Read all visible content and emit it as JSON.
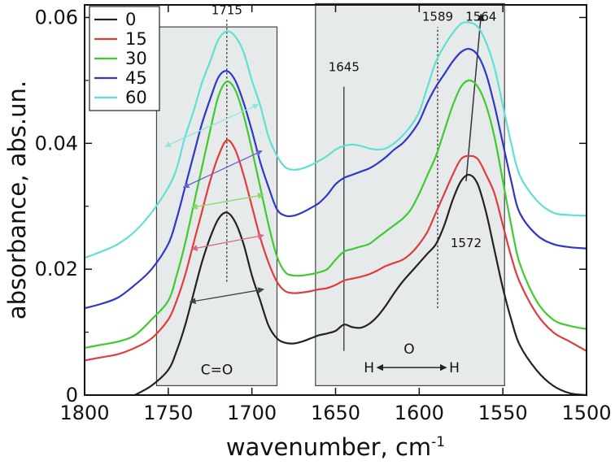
{
  "chart_data": {
    "type": "line",
    "xlabel": "wavenumber, cm",
    "xlabel_sup": "-1",
    "ylabel": "absorbance, abs.un.",
    "xlim": [
      1800,
      1500
    ],
    "ylim": [
      0,
      0.062
    ],
    "x_ticks": [
      1800,
      1750,
      1700,
      1650,
      1600,
      1550,
      1500
    ],
    "y_ticks": [
      0,
      0.02,
      0.04,
      0.06
    ],
    "y_tick_labels": [
      "0",
      "0.02",
      "0.04",
      "0.06"
    ],
    "legend_position": "top-left",
    "series": [
      {
        "name": "0",
        "color": "#222222",
        "x": [
          1770,
          1760,
          1750,
          1745,
          1740,
          1735,
          1730,
          1725,
          1720,
          1715,
          1710,
          1705,
          1700,
          1695,
          1690,
          1685,
          1680,
          1675,
          1670,
          1665,
          1660,
          1655,
          1650,
          1645,
          1640,
          1635,
          1630,
          1625,
          1620,
          1615,
          1610,
          1605,
          1600,
          1595,
          1590,
          1585,
          1580,
          1575,
          1570,
          1565,
          1560,
          1555,
          1550,
          1545,
          1540,
          1530,
          1520,
          1510,
          1500
        ],
        "y": [
          0,
          0.0015,
          0.004,
          0.007,
          0.011,
          0.016,
          0.021,
          0.025,
          0.028,
          0.029,
          0.0275,
          0.024,
          0.019,
          0.015,
          0.011,
          0.009,
          0.0083,
          0.0082,
          0.0085,
          0.009,
          0.0095,
          0.0098,
          0.0102,
          0.0112,
          0.0108,
          0.0107,
          0.0113,
          0.0125,
          0.0142,
          0.0162,
          0.018,
          0.0195,
          0.021,
          0.0225,
          0.024,
          0.027,
          0.031,
          0.034,
          0.035,
          0.0335,
          0.029,
          0.023,
          0.017,
          0.012,
          0.008,
          0.004,
          0.0015,
          0.0003,
          0
        ]
      },
      {
        "name": "15",
        "color": "#e03c3c",
        "x": [
          1800,
          1790,
          1780,
          1770,
          1760,
          1750,
          1745,
          1740,
          1735,
          1730,
          1725,
          1720,
          1715,
          1710,
          1705,
          1700,
          1695,
          1690,
          1685,
          1680,
          1675,
          1670,
          1665,
          1660,
          1655,
          1650,
          1645,
          1640,
          1635,
          1630,
          1625,
          1620,
          1615,
          1610,
          1605,
          1600,
          1595,
          1590,
          1585,
          1580,
          1575,
          1570,
          1565,
          1560,
          1555,
          1550,
          1545,
          1540,
          1530,
          1520,
          1510,
          1500
        ],
        "y": [
          0.0055,
          0.006,
          0.0065,
          0.0075,
          0.009,
          0.012,
          0.015,
          0.019,
          0.024,
          0.029,
          0.034,
          0.038,
          0.0405,
          0.039,
          0.035,
          0.03,
          0.025,
          0.021,
          0.018,
          0.0165,
          0.0162,
          0.0163,
          0.0165,
          0.0168,
          0.017,
          0.0175,
          0.0182,
          0.0185,
          0.0188,
          0.0192,
          0.0198,
          0.0205,
          0.021,
          0.0215,
          0.0225,
          0.024,
          0.026,
          0.029,
          0.032,
          0.035,
          0.0375,
          0.038,
          0.0375,
          0.035,
          0.032,
          0.027,
          0.022,
          0.018,
          0.013,
          0.01,
          0.0085,
          0.007
        ]
      },
      {
        "name": "30",
        "color": "#3ccc2e",
        "x": [
          1800,
          1790,
          1780,
          1770,
          1760,
          1750,
          1745,
          1740,
          1735,
          1730,
          1725,
          1720,
          1715,
          1710,
          1705,
          1700,
          1695,
          1690,
          1685,
          1680,
          1675,
          1670,
          1665,
          1660,
          1655,
          1650,
          1645,
          1640,
          1635,
          1630,
          1625,
          1620,
          1615,
          1610,
          1605,
          1600,
          1595,
          1590,
          1585,
          1580,
          1575,
          1570,
          1565,
          1560,
          1555,
          1550,
          1545,
          1540,
          1530,
          1520,
          1510,
          1500
        ],
        "y": [
          0.0075,
          0.008,
          0.0085,
          0.0095,
          0.012,
          0.015,
          0.019,
          0.024,
          0.03,
          0.036,
          0.042,
          0.0475,
          0.0498,
          0.0485,
          0.0445,
          0.039,
          0.033,
          0.027,
          0.022,
          0.0195,
          0.019,
          0.019,
          0.0192,
          0.0195,
          0.02,
          0.0215,
          0.0228,
          0.0232,
          0.0236,
          0.024,
          0.025,
          0.026,
          0.027,
          0.028,
          0.0295,
          0.032,
          0.035,
          0.038,
          0.042,
          0.046,
          0.049,
          0.05,
          0.049,
          0.046,
          0.041,
          0.034,
          0.027,
          0.021,
          0.015,
          0.012,
          0.011,
          0.0105
        ]
      },
      {
        "name": "45",
        "color": "#2f37c8",
        "x": [
          1800,
          1790,
          1780,
          1770,
          1760,
          1750,
          1745,
          1740,
          1735,
          1730,
          1725,
          1720,
          1715,
          1710,
          1705,
          1700,
          1695,
          1690,
          1685,
          1680,
          1675,
          1670,
          1665,
          1660,
          1655,
          1650,
          1645,
          1640,
          1635,
          1630,
          1625,
          1620,
          1615,
          1610,
          1605,
          1600,
          1595,
          1590,
          1585,
          1580,
          1575,
          1570,
          1565,
          1560,
          1555,
          1550,
          1545,
          1540,
          1530,
          1520,
          1510,
          1500
        ],
        "y": [
          0.0138,
          0.0145,
          0.0155,
          0.0175,
          0.02,
          0.024,
          0.028,
          0.033,
          0.038,
          0.043,
          0.047,
          0.0505,
          0.0515,
          0.05,
          0.0465,
          0.042,
          0.037,
          0.033,
          0.0295,
          0.0285,
          0.0285,
          0.029,
          0.0297,
          0.0305,
          0.0318,
          0.0335,
          0.0345,
          0.035,
          0.0355,
          0.036,
          0.0368,
          0.0378,
          0.039,
          0.04,
          0.0415,
          0.0435,
          0.0465,
          0.049,
          0.051,
          0.053,
          0.0545,
          0.055,
          0.054,
          0.051,
          0.046,
          0.04,
          0.034,
          0.029,
          0.0255,
          0.024,
          0.0235,
          0.0233
        ]
      },
      {
        "name": "60",
        "color": "#5fe0d2",
        "x": [
          1800,
          1790,
          1780,
          1770,
          1760,
          1750,
          1745,
          1740,
          1735,
          1730,
          1725,
          1720,
          1715,
          1710,
          1705,
          1700,
          1695,
          1690,
          1685,
          1680,
          1675,
          1670,
          1665,
          1660,
          1655,
          1650,
          1645,
          1640,
          1635,
          1630,
          1625,
          1620,
          1615,
          1610,
          1605,
          1600,
          1595,
          1590,
          1585,
          1580,
          1575,
          1570,
          1565,
          1560,
          1555,
          1550,
          1545,
          1540,
          1530,
          1520,
          1510,
          1500
        ],
        "y": [
          0.0218,
          0.0228,
          0.024,
          0.026,
          0.029,
          0.033,
          0.036,
          0.041,
          0.045,
          0.0495,
          0.053,
          0.0565,
          0.0578,
          0.057,
          0.0545,
          0.05,
          0.046,
          0.041,
          0.038,
          0.0362,
          0.0358,
          0.036,
          0.0365,
          0.0372,
          0.038,
          0.039,
          0.0396,
          0.0398,
          0.0396,
          0.0392,
          0.039,
          0.0392,
          0.04,
          0.0412,
          0.0428,
          0.045,
          0.049,
          0.053,
          0.0555,
          0.0575,
          0.059,
          0.0592,
          0.0585,
          0.056,
          0.052,
          0.046,
          0.04,
          0.035,
          0.031,
          0.029,
          0.0286,
          0.0285
        ]
      }
    ],
    "shaded_regions": [
      {
        "x_from": 1757,
        "x_to": 1685,
        "y_from": 0.0015,
        "y_to": 0.0585,
        "label": "C=O"
      },
      {
        "x_from": 1662,
        "x_to": 1549,
        "y_from": 0.0015,
        "y_to": 0.0622
      }
    ],
    "reference_lines": [
      {
        "x": 1715,
        "y_from": 0.018,
        "y_to": 0.06,
        "style": "dotted",
        "label": "1715",
        "label_y": 0.0605
      },
      {
        "x": 1645,
        "y_from": 0.007,
        "y_to": 0.049,
        "style": "solid",
        "label": "1645",
        "label_y": 0.0515
      },
      {
        "x": 1589,
        "y_from": 0.0138,
        "y_to": 0.0585,
        "style": "dotted",
        "label": "1589",
        "label_y": 0.0595
      },
      {
        "x_from": 1572,
        "y_from": 0.034,
        "x_to": 1563,
        "y_to": 0.0605,
        "style": "arrow",
        "label": "1564",
        "label_x": 1564,
        "label_y": 0.0595
      }
    ],
    "annotations": [
      {
        "text": "1572",
        "x": 1572,
        "y": 0.0235
      },
      {
        "text": "O",
        "x": 1606,
        "y": 0.0066
      },
      {
        "text": "H",
        "x": 1630,
        "y": 0.0036
      },
      {
        "text": "H",
        "x": 1579,
        "y": 0.0036
      }
    ],
    "fwhm_arrows": [
      {
        "series": "0",
        "color": "#444444",
        "x_from": 1737,
        "x_to": 1693,
        "y_from": 0.0148,
        "y_to": 0.0168
      },
      {
        "series": "15",
        "color": "#d96a7e",
        "x_from": 1736,
        "x_to": 1693,
        "y_from": 0.0232,
        "y_to": 0.0254
      },
      {
        "series": "30",
        "color": "#8ad862",
        "x_from": 1736,
        "x_to": 1693,
        "y_from": 0.0298,
        "y_to": 0.0318
      },
      {
        "series": "45",
        "color": "#6a60d8",
        "x_from": 1741,
        "x_to": 1694,
        "y_from": 0.033,
        "y_to": 0.0388
      },
      {
        "series": "60",
        "color": "#8fe6dc",
        "x_from": 1752,
        "x_to": 1696,
        "y_from": 0.0395,
        "y_to": 0.0462
      }
    ]
  }
}
